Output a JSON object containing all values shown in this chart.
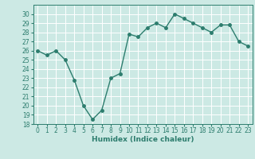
{
  "x": [
    0,
    1,
    2,
    3,
    4,
    5,
    6,
    7,
    8,
    9,
    10,
    11,
    12,
    13,
    14,
    15,
    16,
    17,
    18,
    19,
    20,
    21,
    22,
    23
  ],
  "y": [
    26,
    25.5,
    26,
    25,
    22.8,
    20,
    18.5,
    19.5,
    23,
    23.5,
    27.8,
    27.5,
    28.5,
    29,
    28.5,
    30,
    29.5,
    29,
    28.5,
    28,
    28.8,
    28.8,
    27,
    26.5
  ],
  "line_color": "#2d7d6e",
  "marker": "o",
  "marker_size": 2.5,
  "line_width": 1.0,
  "bg_color": "#cce9e4",
  "grid_color": "#ffffff",
  "xlabel": "Humidex (Indice chaleur)",
  "ylim": [
    18,
    31
  ],
  "xlim": [
    -0.5,
    23.5
  ],
  "yticks": [
    18,
    19,
    20,
    21,
    22,
    23,
    24,
    25,
    26,
    27,
    28,
    29,
    30
  ],
  "xticks": [
    0,
    1,
    2,
    3,
    4,
    5,
    6,
    7,
    8,
    9,
    10,
    11,
    12,
    13,
    14,
    15,
    16,
    17,
    18,
    19,
    20,
    21,
    22,
    23
  ],
  "tick_label_size": 5.5,
  "xlabel_size": 6.5,
  "tick_color": "#2d7d6e",
  "spine_color": "#2d7d6e"
}
